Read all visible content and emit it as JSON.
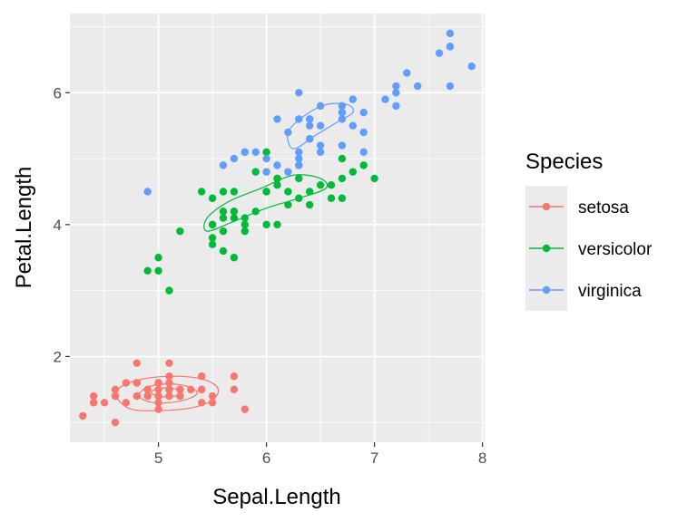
{
  "chart_data": {
    "type": "scatter",
    "title": "",
    "xlabel": "Sepal.Length",
    "ylabel": "Petal.Length",
    "xlim": [
      4.18,
      8.02
    ],
    "ylim": [
      0.7,
      7.2
    ],
    "xticks": [
      "5",
      "6",
      "7",
      "8"
    ],
    "yticks": [
      "2",
      "4",
      "6"
    ],
    "grid": true,
    "legend": {
      "title": "Species",
      "position": "right"
    },
    "series": [
      {
        "name": "setosa",
        "color": "#F8766D",
        "points": [
          [
            5.1,
            1.4
          ],
          [
            4.9,
            1.4
          ],
          [
            4.7,
            1.3
          ],
          [
            4.6,
            1.5
          ],
          [
            5.0,
            1.4
          ],
          [
            5.4,
            1.7
          ],
          [
            4.6,
            1.4
          ],
          [
            5.0,
            1.5
          ],
          [
            4.4,
            1.4
          ],
          [
            4.9,
            1.5
          ],
          [
            5.4,
            1.5
          ],
          [
            4.8,
            1.6
          ],
          [
            4.8,
            1.4
          ],
          [
            4.3,
            1.1
          ],
          [
            5.8,
            1.2
          ],
          [
            5.7,
            1.5
          ],
          [
            5.4,
            1.3
          ],
          [
            5.1,
            1.4
          ],
          [
            5.7,
            1.7
          ],
          [
            5.1,
            1.5
          ],
          [
            5.4,
            1.7
          ],
          [
            5.1,
            1.5
          ],
          [
            4.6,
            1.0
          ],
          [
            5.1,
            1.7
          ],
          [
            4.8,
            1.9
          ],
          [
            5.0,
            1.6
          ],
          [
            5.0,
            1.6
          ],
          [
            5.2,
            1.5
          ],
          [
            5.2,
            1.4
          ],
          [
            4.7,
            1.6
          ],
          [
            4.8,
            1.6
          ],
          [
            5.4,
            1.5
          ],
          [
            5.2,
            1.5
          ],
          [
            5.5,
            1.4
          ],
          [
            4.9,
            1.5
          ],
          [
            5.0,
            1.2
          ],
          [
            5.5,
            1.3
          ],
          [
            4.9,
            1.4
          ],
          [
            4.4,
            1.3
          ],
          [
            5.1,
            1.5
          ],
          [
            5.0,
            1.3
          ],
          [
            4.5,
            1.3
          ],
          [
            4.4,
            1.3
          ],
          [
            5.0,
            1.6
          ],
          [
            5.1,
            1.9
          ],
          [
            4.8,
            1.4
          ],
          [
            5.1,
            1.6
          ],
          [
            4.6,
            1.4
          ],
          [
            5.3,
            1.5
          ],
          [
            5.0,
            1.4
          ]
        ],
        "contours": [
          [
            [
              4.62,
              1.36
            ],
            [
              4.75,
              1.2
            ],
            [
              5.0,
              1.18
            ],
            [
              5.3,
              1.22
            ],
            [
              5.5,
              1.34
            ],
            [
              5.55,
              1.52
            ],
            [
              5.4,
              1.66
            ],
            [
              5.1,
              1.7
            ],
            [
              4.8,
              1.64
            ],
            [
              4.62,
              1.5
            ]
          ],
          [
            [
              4.82,
              1.4
            ],
            [
              4.92,
              1.31
            ],
            [
              5.1,
              1.3
            ],
            [
              5.28,
              1.36
            ],
            [
              5.36,
              1.46
            ],
            [
              5.24,
              1.56
            ],
            [
              5.04,
              1.58
            ],
            [
              4.88,
              1.52
            ]
          ],
          [
            [
              4.94,
              1.44
            ],
            [
              5.04,
              1.39
            ],
            [
              5.16,
              1.4
            ],
            [
              5.22,
              1.46
            ],
            [
              5.12,
              1.52
            ],
            [
              4.98,
              1.51
            ]
          ]
        ]
      },
      {
        "name": "versicolor",
        "color": "#00BA38",
        "points": [
          [
            7.0,
            4.7
          ],
          [
            6.4,
            4.5
          ],
          [
            6.9,
            4.9
          ],
          [
            5.5,
            4.0
          ],
          [
            6.5,
            4.6
          ],
          [
            5.7,
            4.5
          ],
          [
            6.3,
            4.7
          ],
          [
            4.9,
            3.3
          ],
          [
            6.6,
            4.6
          ],
          [
            5.2,
            3.9
          ],
          [
            5.0,
            3.5
          ],
          [
            5.9,
            4.2
          ],
          [
            6.0,
            4.0
          ],
          [
            6.1,
            4.7
          ],
          [
            5.6,
            3.6
          ],
          [
            6.7,
            4.4
          ],
          [
            5.6,
            4.5
          ],
          [
            5.8,
            4.1
          ],
          [
            6.2,
            4.5
          ],
          [
            5.6,
            3.9
          ],
          [
            5.9,
            4.8
          ],
          [
            6.1,
            4.0
          ],
          [
            6.3,
            4.9
          ],
          [
            6.1,
            4.7
          ],
          [
            6.4,
            4.3
          ],
          [
            6.6,
            4.4
          ],
          [
            6.8,
            4.8
          ],
          [
            6.7,
            5.0
          ],
          [
            6.0,
            4.5
          ],
          [
            5.7,
            3.5
          ],
          [
            5.5,
            3.8
          ],
          [
            5.5,
            3.7
          ],
          [
            5.8,
            3.9
          ],
          [
            6.0,
            5.1
          ],
          [
            5.4,
            4.5
          ],
          [
            6.0,
            4.5
          ],
          [
            6.7,
            4.7
          ],
          [
            6.3,
            4.4
          ],
          [
            5.6,
            4.1
          ],
          [
            5.5,
            4.0
          ],
          [
            5.5,
            4.4
          ],
          [
            6.1,
            4.6
          ],
          [
            5.8,
            4.0
          ],
          [
            5.0,
            3.3
          ],
          [
            5.6,
            4.2
          ],
          [
            5.7,
            4.2
          ],
          [
            5.7,
            4.2
          ],
          [
            6.2,
            4.3
          ],
          [
            5.1,
            3.0
          ],
          [
            5.7,
            4.1
          ]
        ],
        "contours": [
          [
            [
              5.45,
              3.9
            ],
            [
              5.7,
              4.05
            ],
            [
              6.0,
              4.25
            ],
            [
              6.3,
              4.4
            ],
            [
              6.55,
              4.55
            ],
            [
              6.5,
              4.7
            ],
            [
              6.25,
              4.75
            ],
            [
              5.95,
              4.55
            ],
            [
              5.65,
              4.35
            ],
            [
              5.45,
              4.1
            ]
          ]
        ]
      },
      {
        "name": "virginica",
        "color": "#619CFF",
        "points": [
          [
            6.3,
            6.0
          ],
          [
            5.8,
            5.1
          ],
          [
            7.1,
            5.9
          ],
          [
            6.3,
            5.6
          ],
          [
            6.5,
            5.8
          ],
          [
            7.6,
            6.6
          ],
          [
            4.9,
            4.5
          ],
          [
            7.3,
            6.3
          ],
          [
            6.7,
            5.8
          ],
          [
            7.2,
            6.1
          ],
          [
            6.5,
            5.1
          ],
          [
            6.4,
            5.3
          ],
          [
            6.8,
            5.5
          ],
          [
            5.7,
            5.0
          ],
          [
            5.8,
            5.1
          ],
          [
            6.4,
            5.3
          ],
          [
            6.5,
            5.5
          ],
          [
            7.7,
            6.7
          ],
          [
            7.7,
            6.9
          ],
          [
            6.0,
            5.0
          ],
          [
            6.9,
            5.7
          ],
          [
            5.6,
            4.9
          ],
          [
            7.7,
            6.7
          ],
          [
            6.3,
            4.9
          ],
          [
            6.7,
            5.7
          ],
          [
            7.2,
            6.0
          ],
          [
            6.2,
            4.8
          ],
          [
            6.1,
            4.9
          ],
          [
            6.4,
            5.6
          ],
          [
            7.2,
            5.8
          ],
          [
            7.4,
            6.1
          ],
          [
            7.9,
            6.4
          ],
          [
            6.4,
            5.6
          ],
          [
            6.3,
            5.1
          ],
          [
            6.1,
            5.6
          ],
          [
            7.7,
            6.1
          ],
          [
            6.3,
            5.6
          ],
          [
            6.4,
            5.5
          ],
          [
            6.0,
            4.8
          ],
          [
            6.9,
            5.4
          ],
          [
            6.7,
            5.6
          ],
          [
            6.9,
            5.1
          ],
          [
            5.8,
            5.1
          ],
          [
            6.8,
            5.9
          ],
          [
            6.7,
            5.7
          ],
          [
            6.7,
            5.2
          ],
          [
            6.3,
            5.0
          ],
          [
            6.5,
            5.2
          ],
          [
            6.2,
            5.4
          ],
          [
            5.9,
            5.1
          ]
        ],
        "contours": [
          [
            [
              6.25,
              5.15
            ],
            [
              6.45,
              5.35
            ],
            [
              6.65,
              5.55
            ],
            [
              6.8,
              5.7
            ],
            [
              6.75,
              5.82
            ],
            [
              6.55,
              5.82
            ],
            [
              6.35,
              5.65
            ],
            [
              6.2,
              5.4
            ]
          ]
        ]
      }
    ]
  }
}
